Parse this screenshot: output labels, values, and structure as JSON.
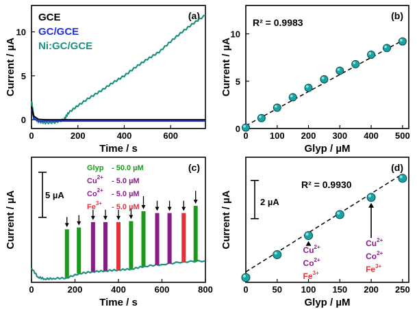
{
  "colors": {
    "gce": "#000000",
    "gc_gce": "#1f2ee8",
    "ni_gc_gce": "#1e8f80",
    "marker_fill": "#1aa3a3",
    "fit_line": "#000000",
    "glyp_bar": "#1a9a1a",
    "cu_co_bar": "#8a1a8a",
    "fe_bar": "#e8303a"
  },
  "chart_data": [
    {
      "panel": "(a)",
      "type": "line",
      "xlabel": "Time / s",
      "ylabel": "Current / µA",
      "xlim": [
        0,
        750
      ],
      "ylim": [
        -1,
        13
      ],
      "xticks": [
        0,
        200,
        400,
        600
      ],
      "yticks": [
        0,
        5,
        10
      ],
      "legend_position": "top-left",
      "series": [
        {
          "name": "GCE",
          "color": "#000000",
          "x": [
            0,
            10,
            30,
            60,
            750
          ],
          "y": [
            1.5,
            0.4,
            0.05,
            0.0,
            0.0
          ]
        },
        {
          "name": "GC/GCE",
          "color": "#1f2ee8",
          "x": [
            0,
            10,
            30,
            60,
            750
          ],
          "y": [
            1.3,
            0.1,
            -0.15,
            -0.15,
            -0.15
          ]
        },
        {
          "name": "Ni:GC/GCE",
          "color": "#1e8f80",
          "x": [
            0,
            10,
            30,
            60,
            100,
            140,
            160,
            200,
            250,
            300,
            350,
            400,
            450,
            500,
            550,
            600,
            650,
            700,
            750
          ],
          "y": [
            2.2,
            0.3,
            -0.2,
            -0.35,
            -0.3,
            0.0,
            0.8,
            1.6,
            2.5,
            3.3,
            4.2,
            5.0,
            6.0,
            6.9,
            7.7,
            8.9,
            10.0,
            11.0,
            11.9
          ]
        }
      ]
    },
    {
      "panel": "(b)",
      "type": "scatter",
      "xlabel": "Glyp / µM",
      "ylabel": "Current / µA",
      "xlim": [
        0,
        520
      ],
      "ylim": [
        0,
        13
      ],
      "xticks": [
        0,
        100,
        200,
        300,
        400,
        500
      ],
      "yticks": [
        0,
        5,
        10
      ],
      "annotation": "R² = 0.9983",
      "x": [
        0,
        50,
        100,
        150,
        200,
        250,
        300,
        350,
        400,
        450,
        500
      ],
      "y": [
        0.1,
        1.1,
        2.2,
        3.3,
        4.3,
        5.2,
        6.1,
        6.8,
        7.8,
        8.5,
        9.2
      ],
      "fit": {
        "slope": 0.018,
        "intercept": 0.3
      }
    },
    {
      "panel": "(c)",
      "type": "line",
      "xlabel": "Time / s",
      "ylabel": "Current / µA",
      "xlim": [
        0,
        800
      ],
      "xticks": [
        0,
        200,
        400,
        600,
        800
      ],
      "scale_bar": "5 µA",
      "additions": [
        {
          "label": "Glyp",
          "value": "- 50.0 µM",
          "color": "#1a9a1a"
        },
        {
          "label": "Cu",
          "sup": "2+",
          "value": "- 5.0 µM",
          "color": "#8a1a8a"
        },
        {
          "label": "Co",
          "sup": "2+",
          "value": "- 5.0 µM",
          "color": "#8a1a8a"
        },
        {
          "label": "Fe",
          "sup": "3+",
          "value": "- 5.0 µM",
          "color": "#e8303a"
        }
      ],
      "baseline": {
        "x": [
          0,
          30,
          60,
          100,
          160,
          220,
          280,
          340,
          400,
          460,
          520,
          600,
          700,
          800
        ],
        "y": [
          1.2,
          0.2,
          0.0,
          0.05,
          0.1,
          0.6,
          0.8,
          0.9,
          1.0,
          1.1,
          1.4,
          1.6,
          1.9,
          2.0
        ]
      },
      "spikes": [
        {
          "t": 163,
          "species": "Glyp",
          "height": 5.5
        },
        {
          "t": 218,
          "species": "Glyp",
          "height": 5.7
        },
        {
          "t": 283,
          "species": "Cu",
          "height": 6.3
        },
        {
          "t": 340,
          "species": "Co",
          "height": 6.3
        },
        {
          "t": 400,
          "species": "Fe",
          "height": 6.3
        },
        {
          "t": 458,
          "species": "Glyp",
          "height": 6.4
        },
        {
          "t": 515,
          "species": "Glyp",
          "height": 7.5
        },
        {
          "t": 578,
          "species": "Cu",
          "height": 7.3
        },
        {
          "t": 635,
          "species": "Co",
          "height": 7.3
        },
        {
          "t": 700,
          "species": "Fe",
          "height": 7.3
        },
        {
          "t": 755,
          "species": "Glyp",
          "height": 8.1
        }
      ]
    },
    {
      "panel": "(d)",
      "type": "scatter",
      "xlabel": "Glyp / µM",
      "ylabel": "Current / µA",
      "xlim": [
        0,
        260
      ],
      "ylim": [
        0,
        5.3
      ],
      "xticks": [
        0,
        50,
        100,
        150,
        200,
        250
      ],
      "annotation": "R² = 0.9930",
      "scale_bar": "2 µA",
      "x": [
        0,
        50,
        100,
        150,
        200,
        250
      ],
      "y": [
        0.0,
        1.2,
        2.2,
        3.3,
        4.2,
        5.2
      ],
      "fit": {
        "slope": 0.0205,
        "intercept": 0.3
      },
      "interferents": [
        {
          "x": 100,
          "ions": [
            {
              "label": "Cu",
              "sup": "2+",
              "color": "#8a1a8a"
            },
            {
              "label": "Co",
              "sup": "2+",
              "color": "#8a1a8a"
            },
            {
              "label": "Fe",
              "sup": "3+",
              "color": "#e8303a"
            }
          ]
        },
        {
          "x": 200,
          "ions": [
            {
              "label": "Cu",
              "sup": "2+",
              "color": "#8a1a8a"
            },
            {
              "label": "Co",
              "sup": "2+",
              "color": "#8a1a8a"
            },
            {
              "label": "Fe",
              "sup": "3+",
              "color": "#e8303a"
            }
          ]
        }
      ]
    }
  ]
}
